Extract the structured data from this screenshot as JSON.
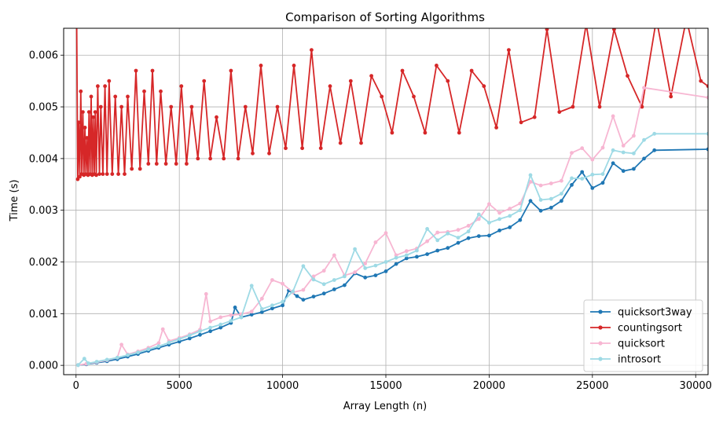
{
  "chart_data": {
    "type": "line",
    "title": "Comparison of Sorting Algorithms",
    "xlabel": "Array Length (n)",
    "ylabel": "Time (s)",
    "xlim": [
      -600,
      30600
    ],
    "ylim": [
      -0.00018,
      0.00652
    ],
    "xticks": [
      0,
      5000,
      10000,
      15000,
      20000,
      25000,
      30000
    ],
    "xtick_labels": [
      "0",
      "5000",
      "10000",
      "15000",
      "20000",
      "25000",
      "30000"
    ],
    "yticks": [
      0.0,
      0.001,
      0.002,
      0.003,
      0.004,
      0.005,
      0.006
    ],
    "ytick_labels": [
      "0.000",
      "0.001",
      "0.002",
      "0.003",
      "0.004",
      "0.005",
      "0.006"
    ],
    "grid": true,
    "legend_position": "lower-right",
    "series": [
      {
        "name": "quicksort3way",
        "color": "#1f77b4",
        "points": [
          [
            100,
            5e-06
          ],
          [
            500,
            2e-05
          ],
          [
            1000,
            5e-05
          ],
          [
            1500,
            8e-05
          ],
          [
            2000,
            0.00012
          ],
          [
            2500,
            0.00017
          ],
          [
            3000,
            0.00022
          ],
          [
            3500,
            0.00028
          ],
          [
            4000,
            0.00034
          ],
          [
            4500,
            0.0004
          ],
          [
            5000,
            0.00046
          ],
          [
            5500,
            0.00052
          ],
          [
            6000,
            0.00059
          ],
          [
            6500,
            0.00066
          ],
          [
            7000,
            0.00073
          ],
          [
            7500,
            0.00082
          ],
          [
            7700,
            0.00112
          ],
          [
            8000,
            0.00093
          ],
          [
            8500,
            0.00098
          ],
          [
            9000,
            0.00103
          ],
          [
            9500,
            0.0011
          ],
          [
            10000,
            0.00116
          ],
          [
            10300,
            0.00145
          ],
          [
            10700,
            0.00134
          ],
          [
            11000,
            0.00127
          ],
          [
            11500,
            0.00133
          ],
          [
            12000,
            0.00139
          ],
          [
            12500,
            0.00147
          ],
          [
            13000,
            0.00155
          ],
          [
            13500,
            0.00178
          ],
          [
            14000,
            0.0017
          ],
          [
            14500,
            0.00174
          ],
          [
            15000,
            0.00182
          ],
          [
            15500,
            0.00196
          ],
          [
            16000,
            0.00207
          ],
          [
            16500,
            0.0021
          ],
          [
            17000,
            0.00215
          ],
          [
            17500,
            0.00222
          ],
          [
            18000,
            0.00227
          ],
          [
            18500,
            0.00237
          ],
          [
            19000,
            0.00246
          ],
          [
            19500,
            0.0025
          ],
          [
            20000,
            0.00251
          ],
          [
            20500,
            0.00261
          ],
          [
            21000,
            0.00267
          ],
          [
            21500,
            0.00281
          ],
          [
            22000,
            0.00318
          ],
          [
            22500,
            0.00299
          ],
          [
            23000,
            0.00305
          ],
          [
            23500,
            0.00318
          ],
          [
            24000,
            0.00349
          ],
          [
            24500,
            0.00374
          ],
          [
            25000,
            0.00343
          ],
          [
            25500,
            0.00353
          ],
          [
            26000,
            0.00391
          ],
          [
            26500,
            0.00376
          ],
          [
            27000,
            0.0038
          ],
          [
            27500,
            0.004
          ],
          [
            28000,
            0.00416
          ],
          [
            30600,
            0.00418
          ]
        ]
      },
      {
        "name": "countingsort",
        "color": "#d62728",
        "points": [
          [
            30,
            0.0066
          ],
          [
            80,
            0.0036
          ],
          [
            130,
            0.0047
          ],
          [
            180,
            0.00365
          ],
          [
            230,
            0.0053
          ],
          [
            280,
            0.0037
          ],
          [
            330,
            0.0049
          ],
          [
            380,
            0.00368
          ],
          [
            430,
            0.0046
          ],
          [
            480,
            0.0037
          ],
          [
            530,
            0.0044
          ],
          [
            580,
            0.00368
          ],
          [
            630,
            0.0049
          ],
          [
            680,
            0.0037
          ],
          [
            730,
            0.0052
          ],
          [
            780,
            0.00368
          ],
          [
            830,
            0.0048
          ],
          [
            880,
            0.0037
          ],
          [
            930,
            0.0049
          ],
          [
            980,
            0.00368
          ],
          [
            1050,
            0.0054
          ],
          [
            1130,
            0.0037
          ],
          [
            1200,
            0.005
          ],
          [
            1300,
            0.0037
          ],
          [
            1400,
            0.0054
          ],
          [
            1500,
            0.0037
          ],
          [
            1600,
            0.0055
          ],
          [
            1750,
            0.0037
          ],
          [
            1900,
            0.0052
          ],
          [
            2050,
            0.0037
          ],
          [
            2200,
            0.005
          ],
          [
            2350,
            0.0037
          ],
          [
            2500,
            0.0052
          ],
          [
            2700,
            0.0038
          ],
          [
            2900,
            0.0057
          ],
          [
            3100,
            0.0038
          ],
          [
            3300,
            0.0053
          ],
          [
            3500,
            0.0039
          ],
          [
            3700,
            0.0057
          ],
          [
            3900,
            0.0039
          ],
          [
            4100,
            0.0053
          ],
          [
            4350,
            0.0039
          ],
          [
            4600,
            0.005
          ],
          [
            4850,
            0.0039
          ],
          [
            5100,
            0.0054
          ],
          [
            5350,
            0.0039
          ],
          [
            5600,
            0.005
          ],
          [
            5900,
            0.004
          ],
          [
            6200,
            0.0055
          ],
          [
            6500,
            0.004
          ],
          [
            6800,
            0.0048
          ],
          [
            7150,
            0.004
          ],
          [
            7500,
            0.0057
          ],
          [
            7850,
            0.004
          ],
          [
            8200,
            0.005
          ],
          [
            8550,
            0.0041
          ],
          [
            8950,
            0.0058
          ],
          [
            9350,
            0.0041
          ],
          [
            9750,
            0.005
          ],
          [
            10150,
            0.0042
          ],
          [
            10550,
            0.0058
          ],
          [
            10950,
            0.0042
          ],
          [
            11400,
            0.0061
          ],
          [
            11850,
            0.0042
          ],
          [
            12300,
            0.0054
          ],
          [
            12800,
            0.0043
          ],
          [
            13300,
            0.0055
          ],
          [
            13800,
            0.0043
          ],
          [
            14300,
            0.0056
          ],
          [
            14800,
            0.0052
          ],
          [
            15300,
            0.0045
          ],
          [
            15800,
            0.0057
          ],
          [
            16350,
            0.0052
          ],
          [
            16900,
            0.0045
          ],
          [
            17450,
            0.0058
          ],
          [
            18000,
            0.0055
          ],
          [
            18550,
            0.0045
          ],
          [
            19150,
            0.0057
          ],
          [
            19750,
            0.0054
          ],
          [
            20350,
            0.0046
          ],
          [
            20950,
            0.0061
          ],
          [
            21550,
            0.0047
          ],
          [
            22200,
            0.0048
          ],
          [
            22800,
            0.0065
          ],
          [
            23400,
            0.0049
          ],
          [
            24050,
            0.005
          ],
          [
            24700,
            0.0066
          ],
          [
            25350,
            0.005
          ],
          [
            26050,
            0.0065
          ],
          [
            26700,
            0.0056
          ],
          [
            27400,
            0.005
          ],
          [
            28100,
            0.0067
          ],
          [
            28800,
            0.0052
          ],
          [
            29550,
            0.0067
          ],
          [
            30250,
            0.0055
          ],
          [
            30600,
            0.0054
          ]
        ]
      },
      {
        "name": "quicksort",
        "color": "#f7b6d2",
        "points": [
          [
            100,
            5e-06
          ],
          [
            500,
            3e-05
          ],
          [
            1000,
            6e-05
          ],
          [
            1500,
            0.0001
          ],
          [
            2000,
            0.00015
          ],
          [
            2200,
            0.0004
          ],
          [
            2500,
            0.00021
          ],
          [
            3000,
            0.00027
          ],
          [
            3500,
            0.00034
          ],
          [
            4000,
            0.00043
          ],
          [
            4200,
            0.0007
          ],
          [
            4500,
            0.00047
          ],
          [
            5000,
            0.00053
          ],
          [
            5500,
            0.0006
          ],
          [
            6000,
            0.00069
          ],
          [
            6300,
            0.00138
          ],
          [
            6500,
            0.00085
          ],
          [
            7000,
            0.00093
          ],
          [
            7500,
            0.00097
          ],
          [
            8000,
            0.00099
          ],
          [
            8500,
            0.00104
          ],
          [
            9000,
            0.00129
          ],
          [
            9500,
            0.00165
          ],
          [
            10000,
            0.00158
          ],
          [
            10500,
            0.00141
          ],
          [
            11000,
            0.00146
          ],
          [
            11500,
            0.00172
          ],
          [
            12000,
            0.00183
          ],
          [
            12500,
            0.00213
          ],
          [
            13000,
            0.00174
          ],
          [
            13500,
            0.0018
          ],
          [
            14000,
            0.00197
          ],
          [
            14500,
            0.00238
          ],
          [
            15000,
            0.00256
          ],
          [
            15500,
            0.00213
          ],
          [
            16000,
            0.00221
          ],
          [
            16500,
            0.00226
          ],
          [
            17000,
            0.0024
          ],
          [
            17500,
            0.00257
          ],
          [
            18000,
            0.00258
          ],
          [
            18500,
            0.00262
          ],
          [
            19000,
            0.0027
          ],
          [
            19500,
            0.00283
          ],
          [
            20000,
            0.00312
          ],
          [
            20500,
            0.00295
          ],
          [
            21000,
            0.00303
          ],
          [
            21500,
            0.00313
          ],
          [
            22000,
            0.00355
          ],
          [
            22500,
            0.00348
          ],
          [
            23000,
            0.00352
          ],
          [
            23500,
            0.00357
          ],
          [
            24000,
            0.00411
          ],
          [
            24500,
            0.0042
          ],
          [
            25000,
            0.00398
          ],
          [
            25500,
            0.00421
          ],
          [
            26000,
            0.00482
          ],
          [
            26500,
            0.00425
          ],
          [
            27000,
            0.00444
          ],
          [
            27500,
            0.00537
          ],
          [
            30600,
            0.00518
          ]
        ]
      },
      {
        "name": "introsort",
        "color": "#9edae5",
        "points": [
          [
            100,
            5e-06
          ],
          [
            400,
            0.00013
          ],
          [
            600,
            4e-05
          ],
          [
            1000,
            7e-05
          ],
          [
            1500,
            0.00011
          ],
          [
            2000,
            0.00015
          ],
          [
            2500,
            0.0002
          ],
          [
            3000,
            0.00025
          ],
          [
            3500,
            0.00031
          ],
          [
            4000,
            0.00037
          ],
          [
            4500,
            0.00044
          ],
          [
            5000,
            0.00051
          ],
          [
            5500,
            0.00058
          ],
          [
            6000,
            0.00066
          ],
          [
            6500,
            0.00073
          ],
          [
            7000,
            0.00079
          ],
          [
            7500,
            0.00086
          ],
          [
            8000,
            0.00093
          ],
          [
            8500,
            0.00154
          ],
          [
            9000,
            0.00109
          ],
          [
            9500,
            0.00116
          ],
          [
            10000,
            0.00123
          ],
          [
            10500,
            0.00143
          ],
          [
            11000,
            0.00192
          ],
          [
            11500,
            0.00166
          ],
          [
            12000,
            0.00157
          ],
          [
            12500,
            0.00165
          ],
          [
            13000,
            0.00172
          ],
          [
            13500,
            0.00225
          ],
          [
            14000,
            0.00188
          ],
          [
            14500,
            0.00193
          ],
          [
            15000,
            0.002
          ],
          [
            15500,
            0.00208
          ],
          [
            16000,
            0.00213
          ],
          [
            16500,
            0.00222
          ],
          [
            17000,
            0.00264
          ],
          [
            17500,
            0.00242
          ],
          [
            18000,
            0.00255
          ],
          [
            18500,
            0.00247
          ],
          [
            19000,
            0.00259
          ],
          [
            19500,
            0.00292
          ],
          [
            20000,
            0.00276
          ],
          [
            20500,
            0.00283
          ],
          [
            21000,
            0.00289
          ],
          [
            21500,
            0.003
          ],
          [
            22000,
            0.00368
          ],
          [
            22500,
            0.0032
          ],
          [
            23000,
            0.00322
          ],
          [
            23500,
            0.00332
          ],
          [
            24000,
            0.00362
          ],
          [
            24500,
            0.00361
          ],
          [
            25000,
            0.00369
          ],
          [
            25500,
            0.0037
          ],
          [
            26000,
            0.00416
          ],
          [
            26500,
            0.00412
          ],
          [
            27000,
            0.0041
          ],
          [
            27500,
            0.00436
          ],
          [
            28000,
            0.00448
          ],
          [
            30600,
            0.00448
          ]
        ]
      }
    ]
  }
}
